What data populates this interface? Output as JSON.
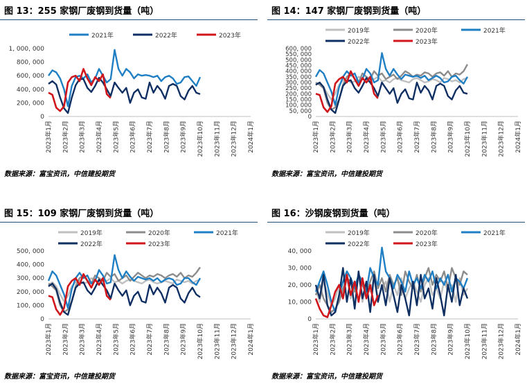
{
  "source_note": "数据来源：富宝资讯，中信建投期货",
  "colors": {
    "2019年": "#bfbfbf",
    "2020年": "#8c8c8c",
    "2021年": "#1f7fc4",
    "2022年": "#0f2f63",
    "2023年": "#d0161b"
  },
  "chart_data": [
    {
      "type": "line",
      "title": "图 13：255 家钢厂废钢到货量（吨）",
      "x_ticks": [
        "2023年1月",
        "2023年2月",
        "2023年3月",
        "2023年4月",
        "2023年5月",
        "2023年6月",
        "2023年7月",
        "2023年8月",
        "2023年9月",
        "2023年10月",
        "2023年11月",
        "2023年12月",
        "2024年1月"
      ],
      "ylim": [
        0,
        1000000
      ],
      "y_ticks": [
        0,
        200000,
        400000,
        600000,
        800000,
        1000000
      ],
      "y_tick_labels": [
        "0",
        "200, 000",
        "400, 000",
        "600, 000",
        "800, 000",
        "1, 000, 000"
      ],
      "legend": [
        "2021年",
        "2022年",
        "2023年"
      ],
      "series": [
        {
          "name": "2021年",
          "values": [
            600000,
            680000,
            650000,
            560000,
            400000,
            150000,
            450000,
            580000,
            600000,
            560000,
            620000,
            500000,
            560000,
            700000,
            600000,
            500000,
            550000,
            980000,
            700000,
            600000,
            700000,
            650000,
            560000,
            620000,
            600000,
            610000,
            600000,
            580000,
            600000,
            520000,
            580000,
            600000,
            560000,
            480000,
            500000,
            580000,
            590000,
            520000,
            450000,
            580000
          ]
        },
        {
          "name": "2022年",
          "values": [
            480000,
            520000,
            470000,
            280000,
            120000,
            50000,
            280000,
            460000,
            550000,
            550000,
            420000,
            360000,
            450000,
            570000,
            500000,
            400000,
            300000,
            500000,
            420000,
            350000,
            420000,
            200000,
            350000,
            400000,
            280000,
            260000,
            500000,
            350000,
            450000,
            380000,
            260000,
            450000,
            480000,
            450000,
            300000,
            250000,
            380000,
            450000,
            350000,
            330000
          ]
        },
        {
          "name": "2023年",
          "values": [
            350000,
            320000,
            130000,
            80000,
            150000,
            500000,
            580000,
            600000,
            520000,
            700000,
            560000,
            460000,
            580000,
            520000,
            620000,
            330000,
            270000
          ]
        }
      ]
    },
    {
      "type": "line",
      "title": "图 14：147 家钢厂废钢到货量（吨）",
      "x_ticks": [
        "2023年1月",
        "2023年2月",
        "2023年3月",
        "2023年4月",
        "2023年5月",
        "2023年6月",
        "2023年7月",
        "2023年8月",
        "2023年9月",
        "2023年10月",
        "2023年11月",
        "2023年12月",
        "2024年1月"
      ],
      "ylim": [
        0,
        600000
      ],
      "y_ticks": [
        0,
        50000,
        100000,
        150000,
        200000,
        250000,
        300000,
        350000,
        400000,
        450000,
        500000,
        550000,
        600000
      ],
      "y_tick_labels": [
        "0",
        "50, 000",
        "100, 000",
        "150, 000",
        "200, 000",
        "250, 000",
        "300, 000",
        "350, 000",
        "400, 000",
        "450, 000",
        "500, 000",
        "550, 000",
        "600, 000"
      ],
      "legend": [
        "2019年",
        "2020年",
        "2021年",
        "2022年",
        "2023年"
      ],
      "series": [
        {
          "name": "2019年",
          "values": [
            280000,
            300000,
            260000,
            200000,
            150000,
            200000,
            280000,
            320000,
            330000,
            300000,
            310000,
            350000,
            340000,
            300000,
            320000,
            330000,
            350000,
            310000,
            320000,
            300000,
            330000,
            340000,
            320000,
            310000,
            300000,
            330000,
            340000,
            320000,
            300000,
            310000,
            330000,
            320000,
            300000,
            340000,
            330000,
            310000,
            320000,
            300000,
            330000,
            340000
          ]
        },
        {
          "name": "2020年",
          "values": [
            300000,
            280000,
            250000,
            120000,
            60000,
            80000,
            150000,
            280000,
            350000,
            380000,
            330000,
            300000,
            380000,
            350000,
            330000,
            400000,
            360000,
            380000,
            330000,
            350000,
            370000,
            330000,
            360000,
            400000,
            380000,
            350000,
            370000,
            360000,
            390000,
            380000,
            350000,
            380000,
            390000,
            360000,
            400000,
            350000,
            380000,
            370000,
            400000,
            460000
          ]
        },
        {
          "name": "2021年",
          "values": [
            350000,
            410000,
            380000,
            300000,
            220000,
            100000,
            260000,
            350000,
            400000,
            360000,
            380000,
            300000,
            330000,
            420000,
            380000,
            300000,
            320000,
            560000,
            420000,
            360000,
            420000,
            370000,
            330000,
            370000,
            360000,
            350000,
            360000,
            340000,
            360000,
            320000,
            340000,
            360000,
            340000,
            300000,
            310000,
            350000,
            360000,
            320000,
            290000,
            350000
          ]
        },
        {
          "name": "2022年",
          "values": [
            280000,
            300000,
            260000,
            150000,
            60000,
            30000,
            150000,
            270000,
            310000,
            320000,
            250000,
            210000,
            270000,
            340000,
            300000,
            250000,
            180000,
            300000,
            250000,
            200000,
            250000,
            120000,
            200000,
            240000,
            160000,
            150000,
            300000,
            210000,
            270000,
            230000,
            150000,
            270000,
            290000,
            270000,
            180000,
            150000,
            230000,
            270000,
            210000,
            200000
          ]
        },
        {
          "name": "2023年",
          "values": [
            200000,
            190000,
            80000,
            40000,
            90000,
            290000,
            330000,
            350000,
            300000,
            400000,
            330000,
            270000,
            340000,
            300000,
            350000,
            200000,
            160000
          ]
        }
      ]
    },
    {
      "type": "line",
      "title": "图 15：109 家钢厂废钢到货量（吨）",
      "x_ticks": [
        "2023年1月",
        "2023年2月",
        "2023年3月",
        "2023年4月",
        "2023年5月",
        "2023年6月",
        "2023年7月",
        "2023年8月",
        "2023年9月",
        "2023年10月",
        "2023年11月",
        "2023年12月",
        "2024年1月"
      ],
      "ylim": [
        0,
        500000
      ],
      "y_ticks": [
        0,
        100000,
        200000,
        300000,
        400000,
        500000
      ],
      "y_tick_labels": [
        "0",
        "100, 000",
        "200, 000",
        "300, 000",
        "400, 000",
        "500, 000"
      ],
      "legend": [
        "2019年",
        "2020年",
        "2021年",
        "2022年",
        "2023年"
      ],
      "series": [
        {
          "name": "2019年",
          "values": [
            250000,
            270000,
            240000,
            180000,
            130000,
            170000,
            240000,
            270000,
            280000,
            260000,
            270000,
            300000,
            290000,
            260000,
            280000,
            280000,
            300000,
            270000,
            280000,
            260000,
            280000,
            290000,
            280000,
            270000,
            260000,
            280000,
            290000,
            270000,
            260000,
            270000,
            280000,
            270000,
            260000,
            290000,
            280000,
            270000,
            280000,
            260000,
            280000,
            290000
          ]
        },
        {
          "name": "2020年",
          "values": [
            260000,
            240000,
            210000,
            100000,
            50000,
            70000,
            130000,
            240000,
            300000,
            320000,
            280000,
            260000,
            320000,
            300000,
            280000,
            340000,
            310000,
            330000,
            280000,
            300000,
            320000,
            280000,
            310000,
            340000,
            320000,
            300000,
            320000,
            310000,
            330000,
            320000,
            300000,
            320000,
            330000,
            310000,
            340000,
            300000,
            320000,
            310000,
            340000,
            380000
          ]
        },
        {
          "name": "2021年",
          "values": [
            280000,
            350000,
            320000,
            250000,
            180000,
            80000,
            220000,
            300000,
            340000,
            300000,
            320000,
            260000,
            280000,
            360000,
            320000,
            260000,
            270000,
            470000,
            360000,
            300000,
            350000,
            310000,
            280000,
            310000,
            300000,
            290000,
            300000,
            280000,
            300000,
            270000,
            290000,
            300000,
            290000,
            250000,
            260000,
            300000,
            300000,
            270000,
            250000,
            300000
          ]
        },
        {
          "name": "2022年",
          "values": [
            240000,
            260000,
            220000,
            120000,
            50000,
            30000,
            130000,
            230000,
            260000,
            270000,
            210000,
            180000,
            230000,
            290000,
            250000,
            210000,
            150000,
            260000,
            210000,
            170000,
            210000,
            100000,
            170000,
            200000,
            130000,
            120000,
            250000,
            180000,
            230000,
            190000,
            120000,
            230000,
            250000,
            230000,
            150000,
            120000,
            190000,
            230000,
            180000,
            160000
          ]
        },
        {
          "name": "2023年",
          "values": [
            170000,
            160000,
            70000,
            30000,
            80000,
            240000,
            280000,
            300000,
            250000,
            330000,
            280000,
            230000,
            290000,
            250000,
            300000,
            170000,
            140000
          ]
        }
      ]
    },
    {
      "type": "line",
      "title": "图 16：沙钢废钢到货量（吨）",
      "x_ticks": [
        "2023年1月",
        "2023年2月",
        "2023年3月",
        "2023年4月",
        "2023年5月",
        "2023年6月",
        "2023年7月",
        "2023年8月",
        "2023年9月",
        "2023年10月",
        "2023年11月",
        "2023年12月",
        "2024年1月"
      ],
      "ylim": [
        0,
        40000
      ],
      "y_ticks": [
        0,
        10000,
        20000,
        30000,
        40000
      ],
      "y_tick_labels": [
        "0",
        "10, 000",
        "20, 000",
        "30, 000",
        "40, 000"
      ],
      "legend": [
        "2019年",
        "2020年",
        "2021年",
        "2022年",
        "2023年"
      ],
      "series": [
        {
          "name": "2019年",
          "values": [
            18000,
            10000,
            22000,
            15000,
            8000,
            12000,
            20000,
            14000,
            24000,
            12000,
            18000,
            26000,
            10000,
            20000,
            16000,
            24000,
            12000,
            18000,
            22000,
            10000,
            20000,
            14000,
            24000,
            12000,
            18000,
            22000,
            16000,
            10000,
            20000,
            24000,
            14000,
            18000,
            12000,
            22000,
            16000,
            20000,
            10000,
            24000,
            14000,
            18000
          ]
        },
        {
          "name": "2020年",
          "values": [
            14000,
            20000,
            12000,
            8000,
            4000,
            6000,
            10000,
            18000,
            24000,
            22000,
            16000,
            26000,
            20000,
            14000,
            22000,
            28000,
            18000,
            24000,
            16000,
            26000,
            20000,
            24000,
            14000,
            28000,
            22000,
            18000,
            26000,
            16000,
            24000,
            30000,
            20000,
            26000,
            22000,
            28000,
            18000,
            30000,
            24000,
            20000,
            28000,
            26000
          ]
        },
        {
          "name": "2021年",
          "values": [
            16000,
            22000,
            28000,
            20000,
            10000,
            4000,
            14000,
            22000,
            28000,
            24000,
            18000,
            26000,
            22000,
            16000,
            30000,
            24000,
            20000,
            42000,
            28000,
            24000,
            18000,
            26000,
            22000,
            16000,
            28000,
            20000,
            24000,
            18000,
            26000,
            22000,
            28000,
            18000,
            24000,
            20000,
            26000,
            16000,
            24000,
            22000,
            18000,
            24000
          ]
        },
        {
          "name": "2022年",
          "values": [
            20000,
            12000,
            26000,
            8000,
            2000,
            4000,
            14000,
            30000,
            10000,
            24000,
            6000,
            28000,
            12000,
            22000,
            4000,
            26000,
            10000,
            20000,
            8000,
            24000,
            14000,
            4000,
            20000,
            12000,
            2000,
            22000,
            8000,
            26000,
            12000,
            18000,
            6000,
            24000,
            14000,
            2000,
            20000,
            10000,
            26000,
            8000,
            18000,
            12000
          ]
        },
        {
          "name": "2023年",
          "values": [
            12000,
            6000,
            2000,
            1000,
            8000,
            16000,
            20000,
            12000,
            26000,
            14000,
            22000,
            10000,
            24000,
            12000,
            20000,
            8000,
            14000
          ]
        }
      ]
    }
  ]
}
